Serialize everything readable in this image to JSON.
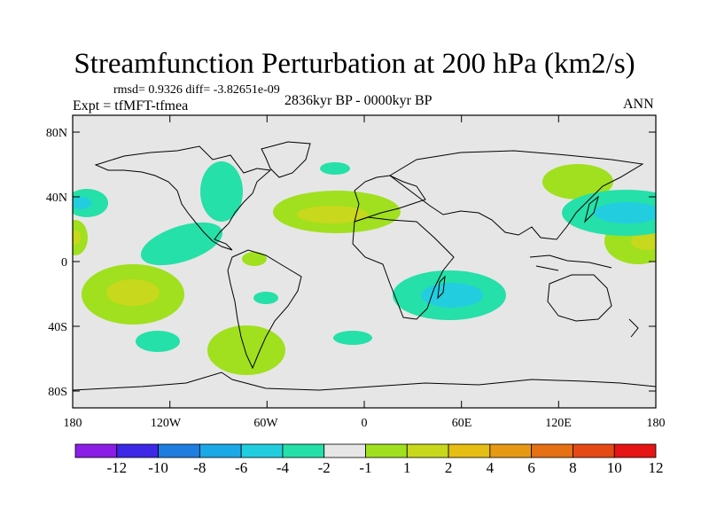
{
  "title": "Streamfunction Perturbation at 200 hPa (km2/s)",
  "stats": "rmsd= 0.9326 diff= -3.82651e-09",
  "left_label": "Expt = tfMFT-tfmea",
  "center_label": "2836kyr BP - 0000kyr BP",
  "right_label": "ANN",
  "map": {
    "lon_ticks": [
      "180",
      "120W",
      "60W",
      "0",
      "60E",
      "120E",
      "180"
    ],
    "lat_ticks": [
      "80N",
      "40N",
      "0",
      "40S",
      "80S"
    ],
    "ocean_color": "#e6e6e6"
  },
  "colorbar": {
    "colors": [
      "#8a1ee6",
      "#3c28e6",
      "#1f7de0",
      "#1ba8e6",
      "#22cde0",
      "#25e0a8",
      "#e6e6e6",
      "#a0e01e",
      "#c8d81c",
      "#e6be14",
      "#e69a14",
      "#e67014",
      "#e64a14",
      "#e61414"
    ],
    "labels": [
      "-12",
      "-10",
      "-8",
      "-6",
      "-4",
      "-2",
      "-1",
      "1",
      "2",
      "4",
      "6",
      "8",
      "10",
      "12"
    ]
  }
}
